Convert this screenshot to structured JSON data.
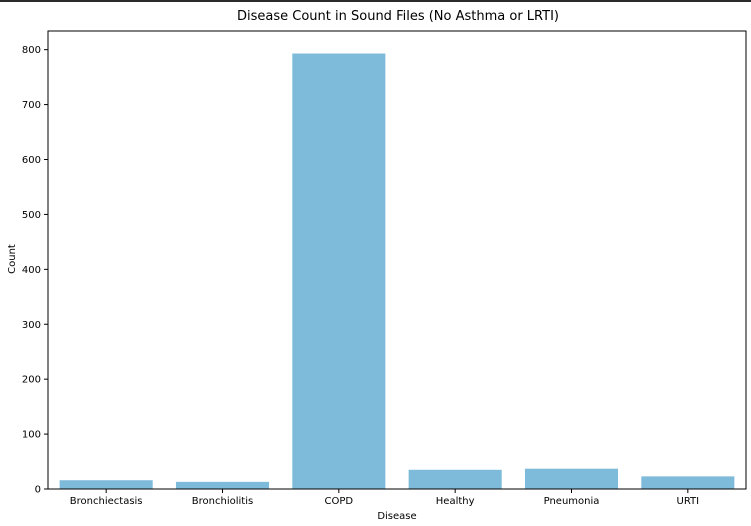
{
  "chart_data": {
    "type": "bar",
    "title": "Disease Count in Sound Files (No Asthma or LRTI)",
    "xlabel": "Disease",
    "ylabel": "Count",
    "categories": [
      "Bronchiectasis",
      "Bronchiolitis",
      "COPD",
      "Healthy",
      "Pneumonia",
      "URTI"
    ],
    "values": [
      16,
      13,
      793,
      35,
      37,
      23
    ],
    "ylim": [
      0,
      834
    ],
    "yticks": [
      0,
      100,
      200,
      300,
      400,
      500,
      600,
      700,
      800
    ],
    "bar_color": "#7ebbdb",
    "grid": false
  }
}
